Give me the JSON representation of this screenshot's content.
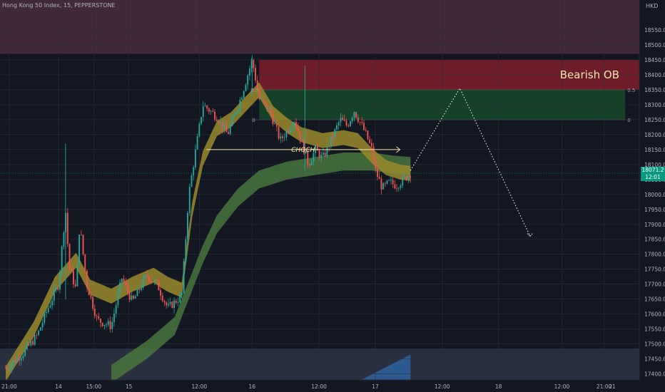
{
  "header": {
    "title": "Hong Kong 50 Index, 15, PEPPERSTONE",
    "currency": "HKD"
  },
  "price_tag": {
    "price": "18071.2",
    "countdown": "12:01",
    "color": "#089981"
  },
  "chart_data": {
    "type": "candlestick",
    "y_ticks": [
      17400,
      17450,
      17500,
      17550,
      17600,
      17650,
      17700,
      17750,
      17800,
      17850,
      17900,
      17950,
      18000,
      18050,
      18100,
      18150,
      18200,
      18250,
      18300,
      18350,
      18400,
      18450,
      18500,
      18550
    ],
    "ylim": [
      17380,
      18650
    ],
    "x_labels": [
      "21:00",
      "14",
      "15:00",
      "15",
      "12:00",
      "16",
      "12:00",
      "17",
      "12:00",
      "18",
      "12:00",
      "21:00",
      "21"
    ],
    "xlim": [
      0,
      180
    ],
    "x_label_positions": [
      1,
      15,
      25,
      35,
      55,
      70,
      89,
      105,
      124,
      140,
      158,
      170,
      182
    ],
    "last_close": 18071.2,
    "candles_anchor_path": [
      [
        0,
        17420
      ],
      [
        5,
        17470
      ],
      [
        9,
        17530
      ],
      [
        12,
        17620
      ],
      [
        15,
        17700
      ],
      [
        17,
        17950
      ],
      [
        18,
        17760
      ],
      [
        20,
        17680
      ],
      [
        21,
        17900
      ],
      [
        23,
        17700
      ],
      [
        26,
        17580
      ],
      [
        30,
        17560
      ],
      [
        33,
        17720
      ],
      [
        36,
        17640
      ],
      [
        40,
        17730
      ],
      [
        43,
        17700
      ],
      [
        46,
        17620
      ],
      [
        49,
        17650
      ],
      [
        50,
        17660
      ],
      [
        52,
        18000
      ],
      [
        54,
        18150
      ],
      [
        56,
        18300
      ],
      [
        60,
        18260
      ],
      [
        63,
        18200
      ],
      [
        67,
        18330
      ],
      [
        70,
        18450
      ],
      [
        72,
        18320
      ],
      [
        75,
        18280
      ],
      [
        78,
        18180
      ],
      [
        82,
        18250
      ],
      [
        84,
        18180
      ],
      [
        86,
        18100
      ],
      [
        88,
        18150
      ],
      [
        90,
        18120
      ],
      [
        92,
        18170
      ],
      [
        95,
        18250
      ],
      [
        97,
        18230
      ],
      [
        99,
        18280
      ],
      [
        102,
        18210
      ],
      [
        104,
        18150
      ],
      [
        105,
        18080
      ],
      [
        107,
        18020
      ],
      [
        109,
        18040
      ],
      [
        111,
        18030
      ],
      [
        113,
        18050
      ],
      [
        115,
        18071.2
      ]
    ],
    "spikes": [
      {
        "x": 17,
        "high": 18170,
        "low": 17650
      },
      {
        "x": 70,
        "high": 18465,
        "low": 18330
      },
      {
        "x": 85,
        "high": 18430,
        "low": 18080
      }
    ],
    "ema_fast": [
      [
        0,
        17400
      ],
      [
        8,
        17550
      ],
      [
        14,
        17700
      ],
      [
        20,
        17780
      ],
      [
        24,
        17690
      ],
      [
        30,
        17660
      ],
      [
        36,
        17700
      ],
      [
        42,
        17730
      ],
      [
        46,
        17700
      ],
      [
        50,
        17680
      ],
      [
        53,
        17950
      ],
      [
        56,
        18120
      ],
      [
        60,
        18220
      ],
      [
        64,
        18250
      ],
      [
        68,
        18300
      ],
      [
        72,
        18350
      ],
      [
        76,
        18270
      ],
      [
        80,
        18230
      ],
      [
        84,
        18200
      ],
      [
        90,
        18180
      ],
      [
        96,
        18190
      ],
      [
        100,
        18180
      ],
      [
        104,
        18130
      ],
      [
        108,
        18090
      ],
      [
        112,
        18075
      ],
      [
        115,
        18070
      ]
    ],
    "ema_fast_band": 25,
    "ema_slow": [
      [
        30,
        17400
      ],
      [
        40,
        17480
      ],
      [
        48,
        17560
      ],
      [
        52,
        17680
      ],
      [
        56,
        17800
      ],
      [
        60,
        17900
      ],
      [
        66,
        17990
      ],
      [
        72,
        18050
      ],
      [
        80,
        18080
      ],
      [
        88,
        18095
      ],
      [
        96,
        18110
      ],
      [
        104,
        18110
      ],
      [
        110,
        18100
      ],
      [
        115,
        18095
      ]
    ],
    "ema_slow_band": 30,
    "bearish_ob": {
      "label": "Bearish OB",
      "top": 18450,
      "bottom": 18350,
      "x_start": 72,
      "x_end": 180,
      "color": "#7a1d2a"
    },
    "fib_zone": {
      "top": 18350,
      "bottom": 18250,
      "x_start": 72,
      "x_end": 176,
      "level_top": "0.5",
      "level_bottom": "0",
      "color": "#16462a"
    },
    "choch": {
      "label": "CHOCH",
      "y": 18150,
      "x_start": 57,
      "x_end": 112
    },
    "projection": [
      [
        115,
        18080
      ],
      [
        129,
        18355
      ],
      [
        149,
        17860
      ]
    ],
    "top_zone": {
      "top": 18650,
      "bottom": 18470,
      "color": "#4a2b3e"
    },
    "bottom_zone": {
      "top": 17485,
      "bottom": 17380,
      "color": "#2b3342"
    },
    "volume_area": {
      "x_start": 101,
      "x_end": 115,
      "low": 17380,
      "high": 17465,
      "color": "#2c5f97"
    },
    "grid": true
  }
}
